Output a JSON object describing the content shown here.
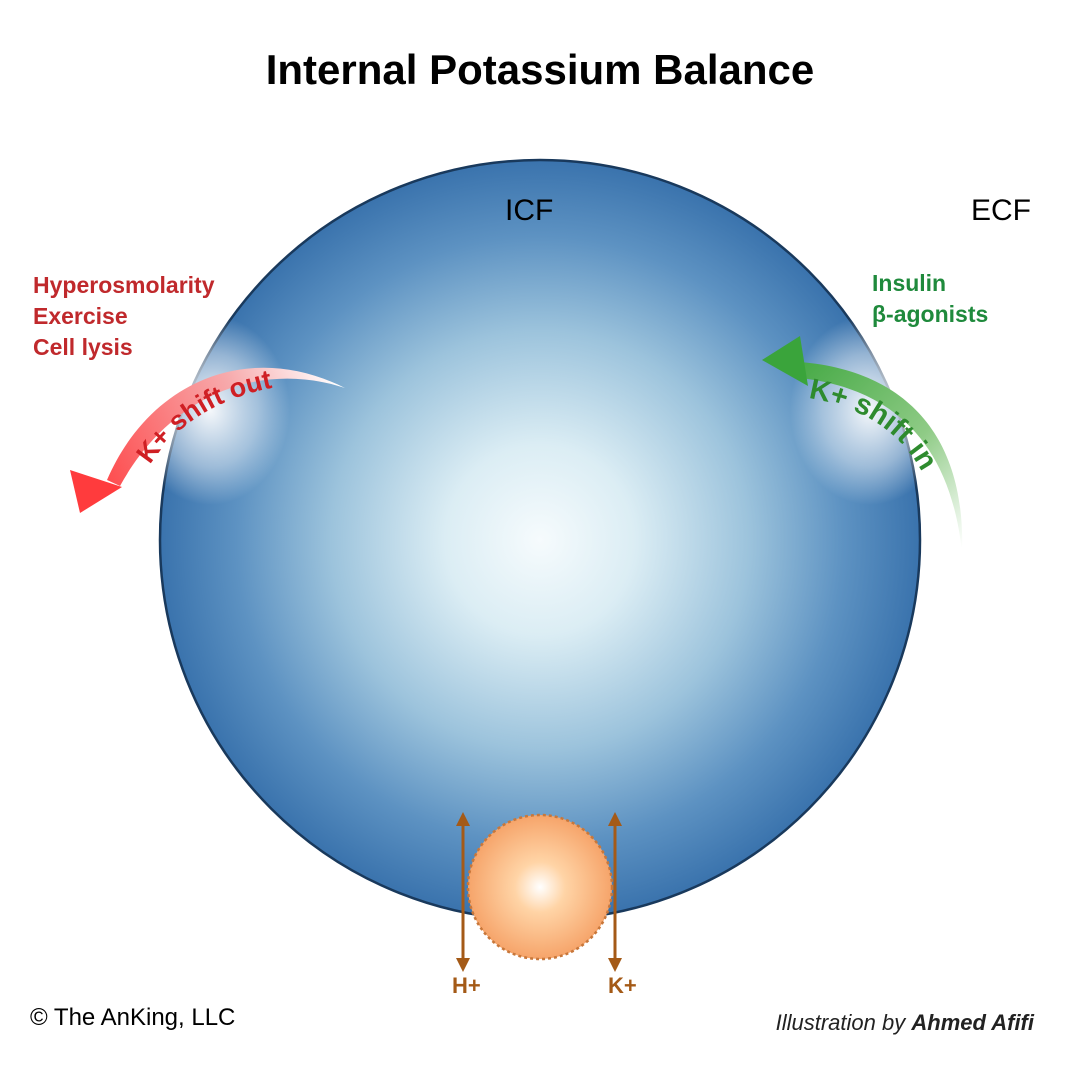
{
  "title": "Internal Potassium Balance",
  "compartments": {
    "intracellular": "ICF",
    "extracellular": "ECF"
  },
  "shift_out": {
    "label": "K+ shift out",
    "causes": [
      "Hyperosmolarity",
      "Exercise",
      "Cell lysis"
    ],
    "color": "#e8272b"
  },
  "shift_in": {
    "label": "K+ shift in",
    "causes": [
      "Insulin",
      "β-agonists"
    ],
    "color": "#2e9a3a"
  },
  "exchanger": {
    "left_ion": "H+",
    "right_ion": "K+",
    "color": "#a45a17"
  },
  "cell_color": "#3a73ad",
  "footer": {
    "copyright": "© The AnKing, LLC",
    "credit_prefix": "Illustration by",
    "credit_name": "Ahmed Afifi"
  }
}
